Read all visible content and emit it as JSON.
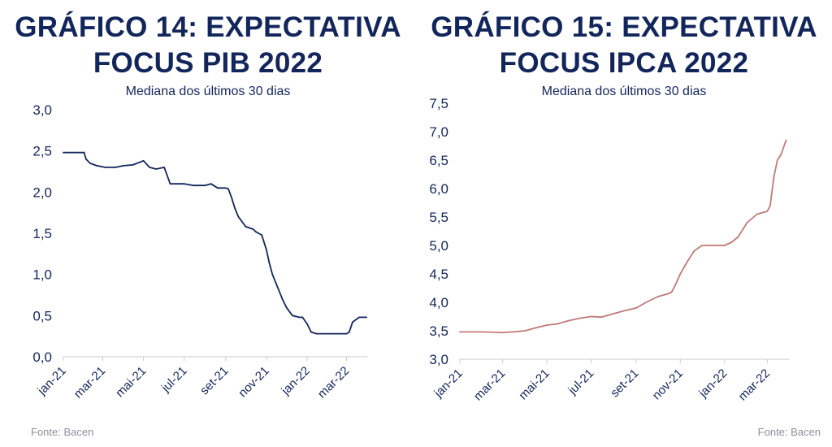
{
  "charts": [
    {
      "title_line1": "GRÁFICO 14: EXPECTATIVA",
      "title_line2": "FOCUS PIB 2022",
      "subtitle": "Mediana dos últimos 30 dias",
      "source": "Fonte: Bacen"
    },
    {
      "title_line1": "GRÁFICO 15: EXPECTATIVA",
      "title_line2": "FOCUS IPCA 2022",
      "subtitle": "Mediana dos últimos 30 dias",
      "source": "Fonte: Bacen"
    }
  ],
  "chart_data": [
    {
      "type": "line",
      "title": "GRÁFICO 14: EXPECTATIVA FOCUS PIB 2022",
      "subtitle": "Mediana dos últimos 30 dias",
      "color": "#13265c",
      "ylim": [
        0.0,
        3.0
      ],
      "yticks": [
        "0,0",
        "0,5",
        "1,0",
        "1,5",
        "2,0",
        "2,5",
        "3,0"
      ],
      "xticks": [
        "jan-21",
        "mar-21",
        "mai-21",
        "jul-21",
        "set-21",
        "nov-21",
        "jan-22",
        "mar-22"
      ],
      "x_range": [
        "2021-01-01",
        "2022-04-01"
      ],
      "series": [
        {
          "x": [
            "2021-01-01",
            "2021-02-01",
            "2021-02-04",
            "2021-02-10",
            "2021-02-20",
            "2021-03-05",
            "2021-03-20",
            "2021-04-01",
            "2021-04-15",
            "2021-05-01",
            "2021-05-10",
            "2021-05-20",
            "2021-06-01",
            "2021-06-10",
            "2021-06-20",
            "2021-07-01",
            "2021-07-15",
            "2021-08-01",
            "2021-08-10",
            "2021-08-20",
            "2021-09-01",
            "2021-09-05",
            "2021-09-10",
            "2021-09-15",
            "2021-09-20",
            "2021-10-01",
            "2021-10-12",
            "2021-10-16",
            "2021-10-20",
            "2021-10-25",
            "2021-11-01",
            "2021-11-05",
            "2021-11-10",
            "2021-11-15",
            "2021-11-25",
            "2021-12-01",
            "2021-12-10",
            "2021-12-20",
            "2021-12-25",
            "2022-01-01",
            "2022-01-07",
            "2022-01-15",
            "2022-02-01",
            "2022-02-15",
            "2022-03-01",
            "2022-03-05",
            "2022-03-10",
            "2022-03-20",
            "2022-03-31"
          ],
          "values": [
            2.48,
            2.48,
            2.4,
            2.35,
            2.32,
            2.3,
            2.3,
            2.32,
            2.33,
            2.38,
            2.3,
            2.28,
            2.3,
            2.1,
            2.1,
            2.1,
            2.08,
            2.08,
            2.1,
            2.05,
            2.05,
            2.04,
            1.93,
            1.8,
            1.7,
            1.58,
            1.55,
            1.52,
            1.5,
            1.48,
            1.3,
            1.15,
            1.0,
            0.9,
            0.7,
            0.6,
            0.5,
            0.48,
            0.48,
            0.4,
            0.3,
            0.28,
            0.28,
            0.28,
            0.28,
            0.3,
            0.42,
            0.48,
            0.48
          ]
        }
      ]
    },
    {
      "type": "line",
      "title": "GRÁFICO 15: EXPECTATIVA FOCUS IPCA 2022",
      "subtitle": "Mediana dos últimos 30 dias",
      "color": "#c07a78",
      "ylim": [
        3.0,
        7.5
      ],
      "yticks": [
        "3,0",
        "3,5",
        "4,0",
        "4,5",
        "5,0",
        "5,5",
        "6,0",
        "6,5",
        "7,0",
        "7,5"
      ],
      "xticks": [
        "jan-21",
        "mar-21",
        "mai-21",
        "jul-21",
        "set-21",
        "nov-21",
        "jan-22",
        "mar-22"
      ],
      "x_range": [
        "2021-01-01",
        "2022-04-01"
      ],
      "series": [
        {
          "x": [
            "2021-01-01",
            "2021-02-01",
            "2021-03-01",
            "2021-03-15",
            "2021-04-01",
            "2021-04-15",
            "2021-05-01",
            "2021-05-15",
            "2021-06-01",
            "2021-06-15",
            "2021-07-01",
            "2021-07-15",
            "2021-08-01",
            "2021-08-15",
            "2021-09-01",
            "2021-09-15",
            "2021-10-01",
            "2021-10-15",
            "2021-10-20",
            "2021-10-25",
            "2021-11-01",
            "2021-11-10",
            "2021-11-20",
            "2021-12-01",
            "2021-12-15",
            "2022-01-01",
            "2022-01-10",
            "2022-01-20",
            "2022-02-01",
            "2022-02-15",
            "2022-03-01",
            "2022-03-05",
            "2022-03-10",
            "2022-03-15",
            "2022-03-20",
            "2022-03-27"
          ],
          "values": [
            3.48,
            3.48,
            3.47,
            3.48,
            3.5,
            3.55,
            3.6,
            3.62,
            3.68,
            3.72,
            3.75,
            3.74,
            3.8,
            3.85,
            3.9,
            4.0,
            4.1,
            4.15,
            4.18,
            4.3,
            4.5,
            4.7,
            4.9,
            5.0,
            5.0,
            5.0,
            5.05,
            5.15,
            5.4,
            5.55,
            5.6,
            5.7,
            6.2,
            6.5,
            6.6,
            6.85
          ]
        }
      ]
    }
  ]
}
